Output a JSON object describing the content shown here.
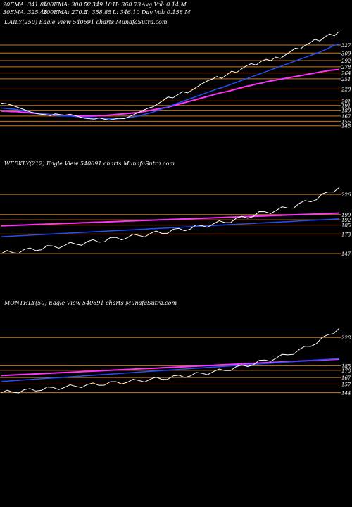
{
  "header": {
    "ema20": "20EMA: 341.84",
    "ema100": "100EMA: 300.52",
    "open": "O: 349.10",
    "high": "H: 360.73",
    "avg_vol": "Avg Vol: 0.14  M",
    "ema30": "30EMA: 325.48",
    "ema200": "200EMA: 270.3",
    "close": "C: 358.85",
    "low": "L: 346.10",
    "day_vol": "Day Vol: 0.158  M"
  },
  "panels": {
    "daily_title": "DAILY(250) Eagle   View  540691 charts MunafaSutra.com",
    "weekly_title": "WEEKLY(212) Eagle   View  540691 charts MunafaSutra.com",
    "monthly_title": "MONTHLY(50) Eagle   View  540691 charts MunafaSutra.com"
  },
  "colors": {
    "price": "#ffffff",
    "level_line": "#cc7a1a",
    "ema_blue": "#1f4fff",
    "ema_magenta": "#ff33ff",
    "ema_pink": "#ff9999",
    "ema_gray": "#bbbbbb",
    "ema_brown": "#b5651d"
  },
  "chart_data": [
    {
      "type": "line",
      "name": "DAILY(250)",
      "levels": [
        327,
        309,
        292,
        278,
        264,
        251,
        228,
        201,
        191,
        180,
        167,
        155,
        145
      ],
      "level_labels": [
        "327",
        "309",
        "292",
        "278",
        "264",
        "251",
        "228",
        "201",
        "191",
        "180",
        "167",
        "155",
        "145"
      ],
      "ylim": [
        135,
        365
      ],
      "price": [
        196,
        195,
        192,
        188,
        184,
        180,
        176,
        173,
        171,
        170,
        168,
        172,
        170,
        169,
        171,
        168,
        165,
        162,
        161,
        160,
        163,
        160,
        158,
        160,
        162,
        161,
        165,
        170,
        175,
        180,
        185,
        188,
        195,
        202,
        210,
        208,
        215,
        222,
        219,
        226,
        233,
        240,
        246,
        250,
        256,
        252,
        260,
        268,
        265,
        273,
        280,
        285,
        282,
        290,
        295,
        292,
        300,
        297,
        305,
        312,
        320,
        318,
        326,
        332,
        340,
        336,
        345,
        352,
        348,
        358
      ],
      "ema20": [
        185,
        184,
        183,
        182,
        180,
        178,
        176,
        174,
        172,
        171,
        170,
        169,
        168,
        167,
        167,
        166,
        165,
        164,
        163,
        162,
        162,
        161,
        161,
        161,
        161,
        162,
        163,
        165,
        167,
        170,
        173,
        176,
        180,
        184,
        188,
        192,
        196,
        200,
        204,
        208,
        212,
        216,
        220,
        224,
        228,
        231,
        235,
        239,
        243,
        247,
        251,
        255,
        259,
        263,
        267,
        271,
        275,
        279,
        283,
        287,
        291,
        295,
        299,
        303,
        307,
        311,
        316,
        321,
        326,
        330
      ],
      "ema200": [
        178,
        178,
        177,
        177,
        176,
        175,
        174,
        173,
        172,
        171,
        170,
        169,
        169,
        168,
        168,
        167,
        167,
        167,
        167,
        167,
        168,
        168,
        169,
        170,
        171,
        172,
        173,
        174,
        175,
        177,
        179,
        181,
        183,
        185,
        187,
        190,
        193,
        196,
        199,
        202,
        205,
        208,
        211,
        214,
        217,
        220,
        222,
        225,
        228,
        231,
        234,
        236,
        239,
        241,
        244,
        246,
        248,
        250,
        252,
        254,
        256,
        258,
        260,
        262,
        264,
        266,
        268,
        270,
        271,
        272
      ]
    },
    {
      "type": "line",
      "name": "WEEKLY(212)",
      "levels": [
        226,
        199,
        192,
        185,
        173,
        147
      ],
      "level_labels": [
        "226",
        "199",
        "192",
        "185",
        "173",
        "147"
      ],
      "ylim": [
        130,
        260
      ]
    },
    {
      "type": "line",
      "name": "MONTHLY(50)",
      "levels": [
        228,
        185,
        178,
        167,
        157,
        144
      ],
      "level_labels": [
        "228",
        "185",
        "178",
        "167",
        "157",
        "144"
      ],
      "ylim": [
        120,
        270
      ]
    }
  ]
}
